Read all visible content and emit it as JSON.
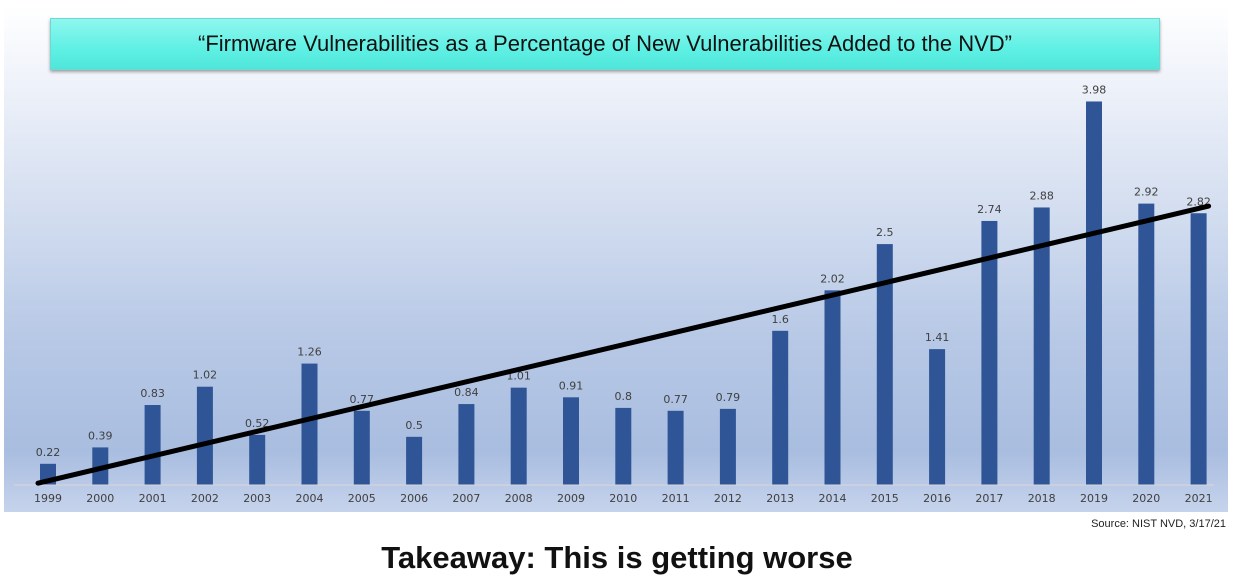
{
  "chart_data": {
    "type": "bar",
    "title": "“Firmware Vulnerabilities as a Percentage of New Vulnerabilities Added to the NVD”",
    "categories": [
      "1999",
      "2000",
      "2001",
      "2002",
      "2003",
      "2004",
      "2005",
      "2006",
      "2007",
      "2008",
      "2009",
      "2010",
      "2011",
      "2012",
      "2013",
      "2014",
      "2015",
      "2016",
      "2017",
      "2018",
      "2019",
      "2020",
      "2021"
    ],
    "values": [
      0.22,
      0.39,
      0.83,
      1.02,
      0.52,
      1.26,
      0.77,
      0.5,
      0.84,
      1.01,
      0.91,
      0.8,
      0.77,
      0.79,
      1.6,
      2.02,
      2.5,
      1.41,
      2.74,
      2.88,
      3.98,
      2.92,
      2.82
    ],
    "data_labels": [
      "0.22",
      "0.39",
      "0.83",
      "1.02",
      "0.52",
      "1.26",
      "0.77",
      "0.5",
      "0.84",
      "1.01",
      "0.91",
      "0.8",
      "0.77",
      "0.79",
      "1.6",
      "2.02",
      "2.5",
      "1.41",
      "2.74",
      "2.88",
      "3.98",
      "2.92",
      "2.82"
    ],
    "trendline": {
      "type": "linear",
      "color": "#000000"
    },
    "bar_color": "#2f5597",
    "ylim": [
      0,
      4.4
    ],
    "xlabel": "",
    "ylabel": "",
    "grid": false,
    "legend": "none"
  },
  "source": "Source: NIST NVD, 3/17/21",
  "takeaway": "Takeaway: This is getting worse"
}
